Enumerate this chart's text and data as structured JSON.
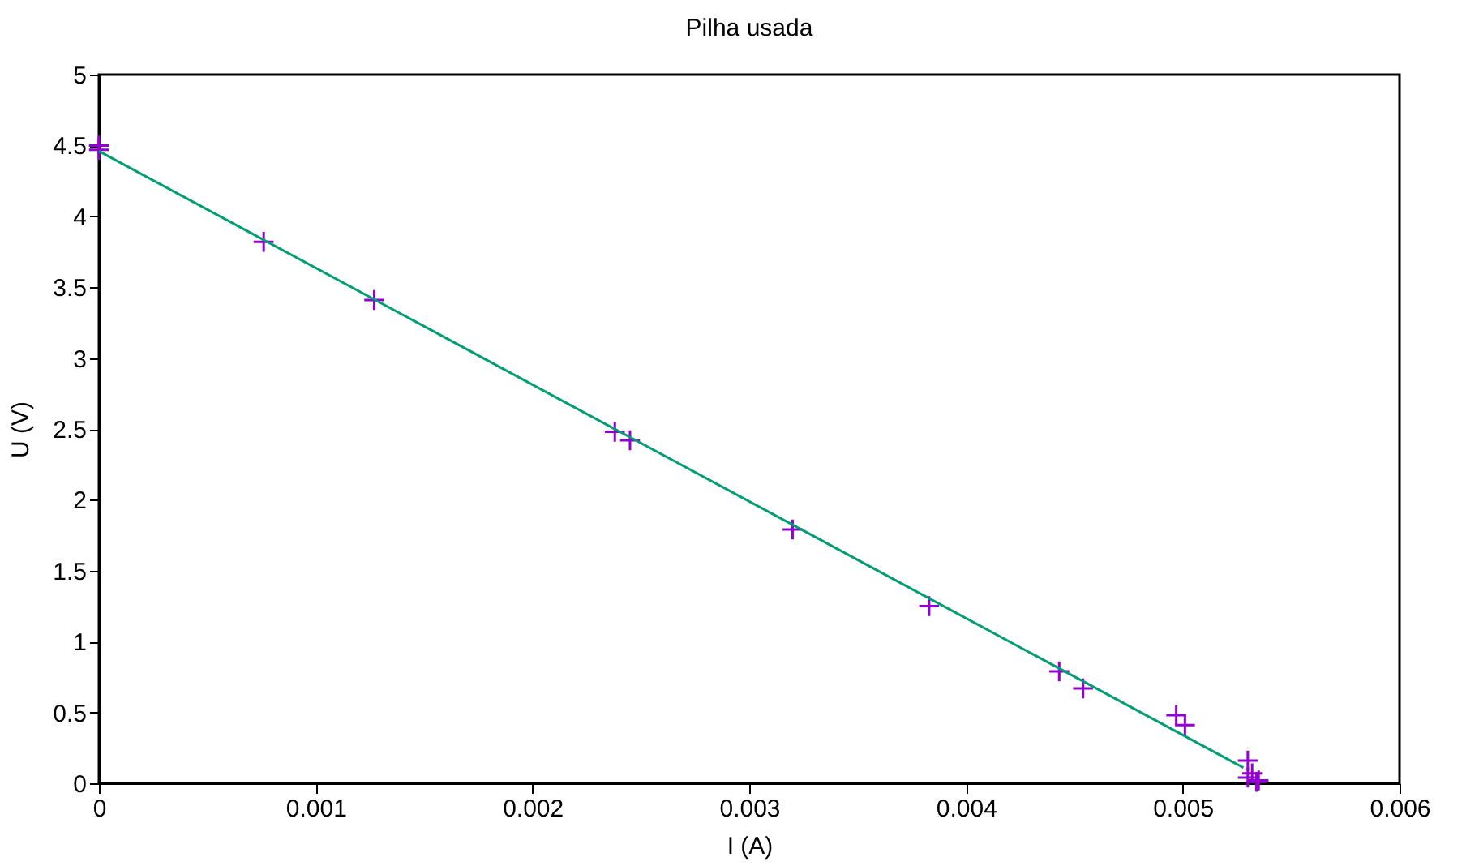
{
  "chart_data": {
    "type": "scatter",
    "title": "Pilha usada",
    "xlabel": "I (A)",
    "ylabel": "U (V)",
    "xlim": [
      0,
      0.006
    ],
    "xticks": [
      0,
      0.001,
      0.002,
      0.003,
      0.004,
      0.005,
      0.006
    ],
    "ylim": [
      0,
      5
    ],
    "yticks": [
      0,
      0.5,
      1,
      1.5,
      2,
      2.5,
      3,
      3.5,
      4,
      4.5,
      5
    ],
    "grid": false,
    "marker": "cross",
    "series": [
      {
        "color": "#9400d3",
        "x": [
          0,
          0,
          0.00076,
          0.00127,
          0.00238,
          0.00245,
          0.0032,
          0.00383,
          0.00443,
          0.00454,
          0.00497,
          0.00501,
          0.0053,
          0.00532,
          0.0053,
          0.00534,
          0.00535
        ],
        "values": [
          4.5,
          4.47,
          3.82,
          3.41,
          2.48,
          2.42,
          1.79,
          1.25,
          0.79,
          0.67,
          0.48,
          0.41,
          0.16,
          0.07,
          0.04,
          0.01,
          0.02
        ]
      },
      {
        "type": "line",
        "color": "#009e73",
        "line_style": "solid",
        "marker": "none",
        "x": [
          0,
          0.00528
        ],
        "values": [
          4.46,
          0.11
        ]
      }
    ]
  }
}
